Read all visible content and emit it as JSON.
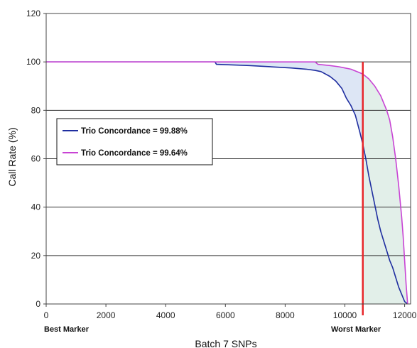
{
  "chart_data": {
    "type": "line",
    "title": "",
    "xlabel": "Batch 7 SNPs",
    "ylabel": "Call Rate (%)",
    "xlim": [
      0,
      12200
    ],
    "ylim": [
      0,
      120
    ],
    "xticks": [
      0,
      2000,
      4000,
      6000,
      8000,
      10000,
      12000
    ],
    "yticks": [
      0,
      20,
      40,
      60,
      80,
      100,
      120
    ],
    "x_end_labels": {
      "left": "Best Marker",
      "right": "Worst Marker"
    },
    "grid": "horizontal",
    "legend_position": "middle-left",
    "cutoff_line": {
      "x": 10600,
      "color": "#e8262a"
    },
    "shaded_regions": [
      {
        "name": "between-curves",
        "color": "#dde6f5"
      },
      {
        "name": "worst-markers",
        "color": "#e2efe9"
      }
    ],
    "series": [
      {
        "name": "Trio Concordance = 99.88%",
        "color": "#1f2ea0",
        "x": [
          0,
          5650,
          5700,
          6800,
          7500,
          8200,
          8700,
          9000,
          9200,
          9500,
          9700,
          9900,
          10050,
          10200,
          10350,
          10500,
          10600,
          10700,
          10800,
          10900,
          11000,
          11100,
          11200,
          11300,
          11400,
          11500,
          11600,
          11700,
          11800,
          11900,
          12000,
          12100
        ],
        "y": [
          100,
          100,
          99,
          98.5,
          98,
          97.5,
          97,
          96.5,
          96,
          94,
          92,
          89,
          85,
          82,
          78,
          71,
          66,
          60,
          53,
          47,
          41,
          35,
          30,
          26,
          22,
          18,
          15,
          11,
          7,
          4,
          1,
          0
        ]
      },
      {
        "name": "Trio Concordance = 99.64%",
        "color": "#c843d4",
        "x": [
          0,
          9000,
          9100,
          9500,
          9800,
          10000,
          10200,
          10400,
          10600,
          10800,
          11000,
          11200,
          11400,
          11500,
          11600,
          11700,
          11800,
          11900,
          11950,
          12000,
          12050,
          12100
        ],
        "y": [
          100,
          100,
          99,
          98.5,
          98,
          97.5,
          97,
          96,
          95,
          93,
          90,
          86,
          80,
          76,
          69,
          60,
          49,
          36,
          28,
          18,
          8,
          0
        ]
      }
    ]
  }
}
